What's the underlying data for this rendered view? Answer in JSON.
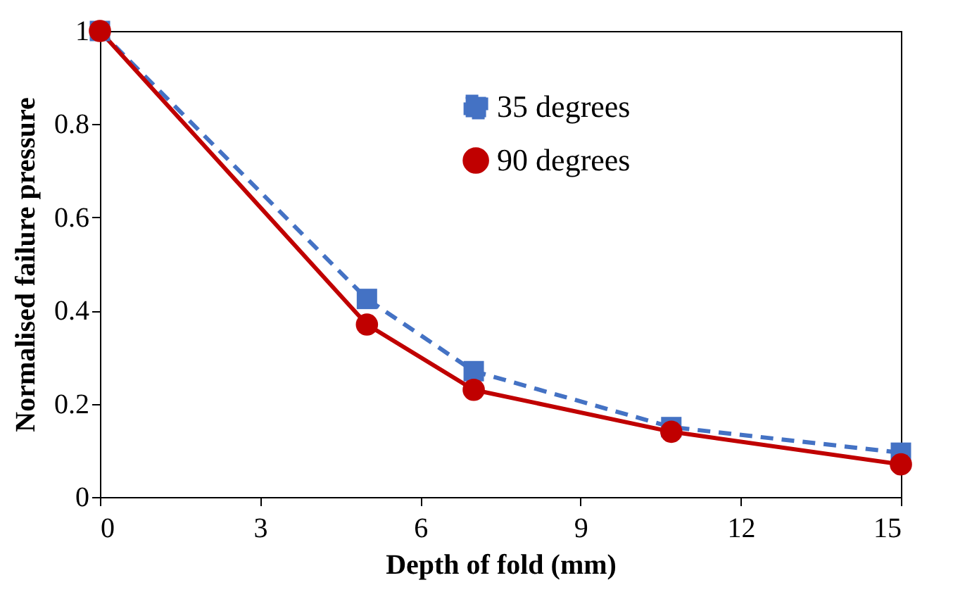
{
  "chart_data": {
    "type": "line",
    "xlabel": "Depth of fold (mm)",
    "ylabel": "Normalised failure pressure",
    "x": [
      0,
      5,
      7,
      10.7,
      15
    ],
    "series": [
      {
        "name": "35 degrees",
        "color": "#4472c4",
        "values": [
          1,
          0.425,
          0.27,
          0.15,
          0.095
        ],
        "marker": "square",
        "line_style": "dashed"
      },
      {
        "name": "90 degrees",
        "color": "#c00000",
        "values": [
          1,
          0.37,
          0.23,
          0.14,
          0.07
        ],
        "marker": "circle",
        "line_style": "solid"
      }
    ],
    "xlim": [
      0,
      15
    ],
    "xticks": [
      0,
      3,
      6,
      9,
      12,
      15
    ],
    "ylim": [
      0,
      1
    ],
    "yticks": [
      0,
      0.2,
      0.4,
      0.6,
      0.8,
      1
    ],
    "grid": false,
    "legend": "top right"
  }
}
